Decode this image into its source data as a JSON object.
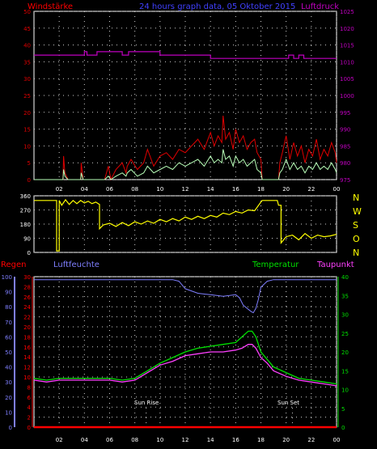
{
  "colors": {
    "background": "#000000",
    "grid": "#d0d0d0",
    "wind": "#e00000",
    "gust": "#b8ffb8",
    "pressure": "#c000c0",
    "direction": "#ffff00",
    "rain": "#ff0000",
    "humidity": "#7f7fff",
    "temperature": "#00e000",
    "dewpoint": "#ff40ff",
    "title": "#4040ff",
    "axis_frame": "#ffffff"
  },
  "header": {
    "left": "Windstärke",
    "center": "24 hours graph data, 05 Oktober 2015",
    "right": "Luftdruck"
  },
  "x_tick_labels": [
    "02",
    "04",
    "06",
    "08",
    "10",
    "12",
    "14",
    "16",
    "18",
    "20",
    "22",
    "00"
  ],
  "compass_labels": [
    "N",
    "W",
    "S",
    "O",
    "N"
  ],
  "bottom_labels": {
    "rain": "Regen",
    "humidity": "Luftfeuchte",
    "temperature": "Temperatur",
    "dewpoint": "Taupunkt"
  },
  "annotations": {
    "sun_rise": "Sun Rise",
    "sun_set": "Sun Set"
  },
  "chart_data": [
    {
      "type": "line",
      "name": "wind_pressure",
      "x_range": [
        0,
        24
      ],
      "y_left": {
        "label": "Windstärke",
        "ticks": [
          0,
          5,
          10,
          15,
          20,
          25,
          30,
          35,
          40,
          45,
          50
        ],
        "range": [
          0,
          50
        ]
      },
      "y_right": {
        "label": "Luftdruck",
        "ticks": [
          975,
          980,
          985,
          990,
          995,
          1000,
          1005,
          1010,
          1015,
          1020,
          1025
        ],
        "range": [
          975,
          1025
        ]
      },
      "series": [
        {
          "name": "Luftdruck",
          "axis": "right",
          "x": [
            0,
            4.0,
            4.0,
            4.2,
            4.2,
            5.0,
            5.0,
            7.0,
            7.0,
            7.5,
            7.5,
            10.0,
            10.0,
            12.0,
            12.0,
            14.0,
            14.0,
            16.0,
            16.0,
            19.0,
            19.0,
            20.2,
            20.2,
            20.6,
            20.6,
            21.0,
            21.0,
            21.4,
            21.4,
            24
          ],
          "y": [
            1012,
            1012,
            1013,
            1013,
            1012,
            1012,
            1013,
            1013,
            1012,
            1012,
            1013,
            1013,
            1012,
            1012,
            1012,
            1012,
            1011,
            1011,
            1011,
            1011,
            1011,
            1011,
            1012,
            1012,
            1011,
            1011,
            1012,
            1012,
            1011,
            1011
          ]
        },
        {
          "name": "wind_max",
          "axis": "left",
          "x": [
            0,
            2.3,
            2.35,
            2.45,
            2.7,
            3.7,
            3.75,
            3.9,
            5.6,
            5.9,
            6.1,
            6.5,
            7.0,
            7.3,
            7.4,
            7.7,
            8.2,
            8.7,
            9.0,
            9.5,
            10.0,
            10.5,
            11.0,
            11.5,
            12.0,
            12.5,
            13.0,
            13.5,
            14.0,
            14.3,
            14.6,
            14.9,
            15.0,
            15.2,
            15.5,
            15.8,
            16.0,
            16.3,
            16.6,
            16.9,
            17.2,
            17.5,
            17.7,
            18.0,
            18.1,
            18.2,
            18.3,
            18.6,
            19.0,
            19.4,
            19.5,
            19.7,
            20.0,
            20.3,
            20.6,
            20.9,
            21.2,
            21.5,
            21.8,
            22.1,
            22.4,
            22.7,
            23.0,
            23.3,
            23.6,
            23.9,
            24.0
          ],
          "y": [
            0,
            0,
            7,
            2,
            0,
            0,
            5,
            0,
            0,
            4,
            0,
            3,
            5,
            2,
            4,
            6,
            3,
            5,
            9,
            4,
            7,
            8,
            6,
            9,
            8,
            10,
            12,
            9,
            14,
            10,
            13,
            11,
            19,
            12,
            14,
            9,
            15,
            11,
            13,
            9,
            11,
            12,
            8,
            6,
            0,
            0,
            0,
            0,
            0,
            0,
            5,
            8,
            13,
            6,
            11,
            7,
            10,
            5,
            9,
            7,
            12,
            6,
            9,
            7,
            11,
            8,
            5
          ]
        },
        {
          "name": "wind_avg",
          "axis": "left",
          "x": [
            0,
            2.3,
            2.35,
            2.45,
            2.7,
            3.7,
            3.75,
            3.9,
            5.6,
            5.9,
            6.1,
            6.5,
            7.0,
            7.3,
            7.4,
            7.7,
            8.2,
            8.7,
            9.0,
            9.5,
            10.0,
            10.5,
            11.0,
            11.5,
            12.0,
            12.5,
            13.0,
            13.5,
            14.0,
            14.3,
            14.6,
            14.9,
            15.0,
            15.2,
            15.5,
            15.8,
            16.0,
            16.3,
            16.6,
            16.9,
            17.2,
            17.5,
            17.7,
            18.0,
            18.1,
            18.2,
            18.3,
            18.6,
            19.0,
            19.4,
            19.5,
            19.7,
            20.0,
            20.3,
            20.6,
            20.9,
            21.2,
            21.5,
            21.8,
            22.1,
            22.4,
            22.7,
            23.0,
            23.3,
            23.6,
            23.9,
            24.0
          ],
          "y": [
            0,
            0,
            3,
            1,
            0,
            0,
            2,
            0,
            0,
            1,
            0,
            1,
            2,
            1,
            2,
            3,
            1,
            2,
            4,
            2,
            3,
            4,
            3,
            5,
            4,
            5,
            6,
            4,
            7,
            5,
            6,
            5,
            9,
            6,
            7,
            4,
            7,
            5,
            6,
            4,
            5,
            6,
            3,
            2,
            0,
            0,
            0,
            0,
            0,
            0,
            2,
            3,
            6,
            3,
            5,
            3,
            4,
            2,
            4,
            3,
            5,
            3,
            4,
            3,
            5,
            3,
            2
          ]
        }
      ]
    },
    {
      "type": "line",
      "name": "wind_direction",
      "x_range": [
        0,
        24
      ],
      "y_left": {
        "ticks": [
          0,
          90,
          180,
          270,
          360
        ],
        "range": [
          0,
          360
        ]
      },
      "series": [
        {
          "name": "direction",
          "x": [
            0,
            1.8,
            1.8,
            2.0,
            2.0,
            2.2,
            2.5,
            2.8,
            3.1,
            3.4,
            3.7,
            4.0,
            4.3,
            4.6,
            4.9,
            5.2,
            5.2,
            5.5,
            6.0,
            6.5,
            7.0,
            7.5,
            8.0,
            8.5,
            9.0,
            9.5,
            10.0,
            10.5,
            11.0,
            11.5,
            12.0,
            12.5,
            13.0,
            13.5,
            14.0,
            14.5,
            15.0,
            15.5,
            16.0,
            16.5,
            17.0,
            17.5,
            18.0,
            18.1,
            19.3,
            19.4,
            19.6,
            19.6,
            20.0,
            20.5,
            21.0,
            21.5,
            22.0,
            22.5,
            23.0,
            23.5,
            24.0
          ],
          "y": [
            330,
            330,
            10,
            10,
            330,
            300,
            335,
            305,
            330,
            310,
            330,
            315,
            325,
            310,
            320,
            305,
            150,
            175,
            185,
            165,
            190,
            170,
            195,
            180,
            200,
            185,
            210,
            195,
            215,
            200,
            225,
            210,
            230,
            215,
            235,
            225,
            250,
            240,
            260,
            250,
            270,
            265,
            320,
            330,
            330,
            300,
            300,
            60,
            100,
            110,
            80,
            120,
            90,
            110,
            100,
            105,
            115
          ]
        }
      ]
    },
    {
      "type": "line",
      "name": "humidity_temperature",
      "x_range": [
        0,
        24
      ],
      "y_left_outer": {
        "label": "Luftfeuchte",
        "ticks": [
          0,
          10,
          20,
          30,
          40,
          50,
          60,
          70,
          80,
          90,
          100
        ],
        "range": [
          0,
          100
        ]
      },
      "y_left_inner": {
        "label": "Regen",
        "ticks": [
          0,
          2,
          4,
          6,
          8,
          10,
          12,
          14,
          16,
          18,
          20,
          22,
          24,
          26,
          28,
          30
        ],
        "range": [
          0,
          30
        ]
      },
      "y_right": {
        "label": "Temperatur",
        "ticks": [
          0,
          5,
          10,
          15,
          20,
          25,
          30,
          35,
          40
        ],
        "range": [
          0,
          40
        ]
      },
      "series": [
        {
          "name": "Luftfeuchte",
          "axis": "left_outer",
          "x": [
            0,
            1,
            2,
            3,
            4,
            5,
            6,
            7,
            8,
            9,
            10,
            11,
            11.5,
            12,
            13,
            14,
            15,
            16,
            16.3,
            16.6,
            16.9,
            17.2,
            17.4,
            17.6,
            17.8,
            18.0,
            18.5,
            19.0,
            20,
            21,
            22,
            23,
            24
          ],
          "y": [
            98,
            98,
            98,
            98,
            98,
            98,
            98,
            98,
            98,
            98,
            98,
            98,
            97,
            92,
            89,
            88,
            87,
            88,
            86,
            81,
            79,
            77,
            76,
            79,
            85,
            93,
            97,
            98,
            98,
            98,
            98,
            98,
            98
          ]
        },
        {
          "name": "Temperatur",
          "axis": "right",
          "x": [
            0,
            1,
            2,
            3,
            4,
            5,
            6,
            7,
            8,
            9,
            10,
            11,
            12,
            13,
            14,
            15,
            16,
            16.5,
            17.0,
            17.3,
            17.6,
            18.0,
            18.5,
            19,
            20,
            21,
            22,
            23,
            24
          ],
          "y": [
            13,
            12.5,
            13,
            13,
            13,
            13,
            13,
            12.5,
            13,
            15,
            17,
            18.5,
            20,
            21,
            21.5,
            22,
            22.5,
            24,
            25.5,
            25.5,
            24,
            20,
            18,
            16,
            14.5,
            13,
            12.5,
            12,
            11.5
          ]
        },
        {
          "name": "Taupunkt",
          "axis": "right",
          "x": [
            0,
            1,
            2,
            3,
            4,
            5,
            6,
            7,
            8,
            9,
            10,
            11,
            12,
            13,
            14,
            15,
            16,
            16.5,
            17.0,
            17.3,
            17.6,
            18.0,
            18.5,
            19,
            20,
            21,
            22,
            23,
            24
          ],
          "y": [
            12.5,
            12,
            12.5,
            12.5,
            12.5,
            12.5,
            12.5,
            12,
            12.5,
            14.5,
            16.5,
            17.5,
            19,
            19.5,
            20,
            20,
            20.5,
            21,
            22,
            22,
            21,
            18.5,
            17,
            15,
            13.5,
            12.5,
            12,
            11.5,
            11
          ]
        },
        {
          "name": "Regen",
          "axis": "left_inner",
          "x": [
            0,
            24
          ],
          "y": [
            0,
            0
          ]
        }
      ],
      "markers": [
        {
          "label": "Sun Rise",
          "x": 8.9
        },
        {
          "label": "Sun Set",
          "x": 20.5
        }
      ]
    }
  ]
}
